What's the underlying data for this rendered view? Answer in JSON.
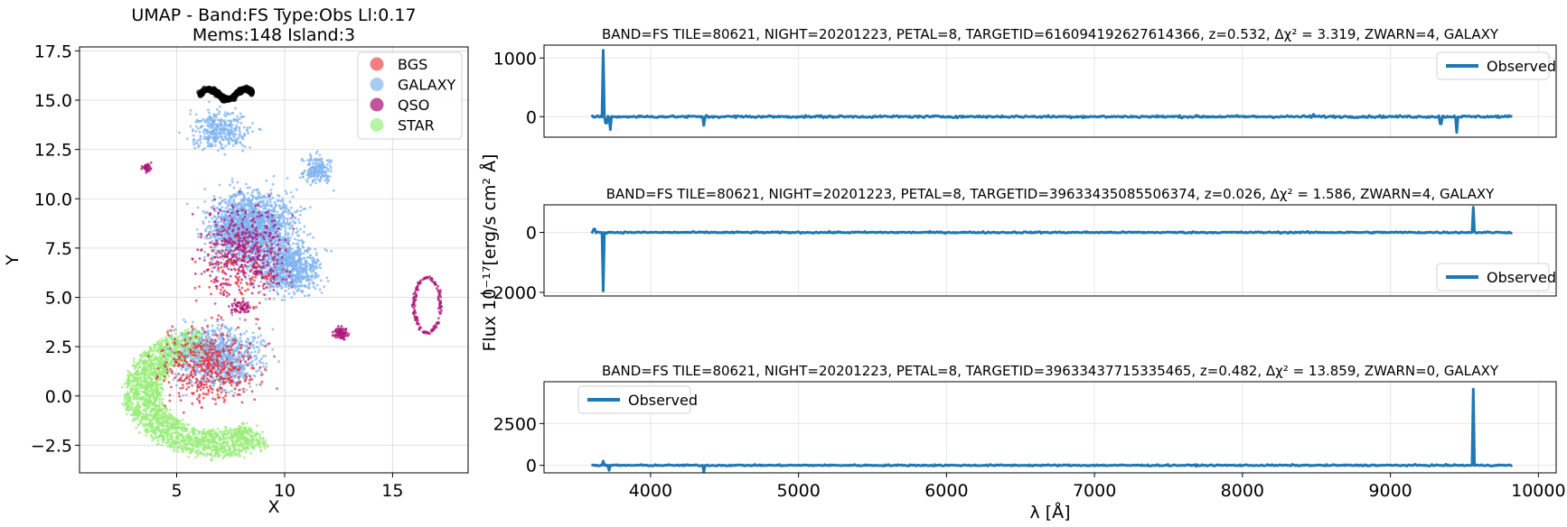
{
  "chart_data": [
    {
      "type": "scatter",
      "title": "UMAP  -  Band:FS Type:Obs Ll:0.17",
      "subtitle": "Mems:148 Island:3",
      "xlabel": "X",
      "ylabel": "Y",
      "xlim": [
        0.5,
        18.5
      ],
      "ylim": [
        -3.9,
        17.7
      ],
      "xticks": [
        5,
        10,
        15
      ],
      "yticks": [
        -2.5,
        0.0,
        2.5,
        5.0,
        7.5,
        10.0,
        12.5,
        15.0,
        17.5
      ],
      "ytick_labels": [
        "−2.5",
        "0.0",
        "2.5",
        "5.0",
        "7.5",
        "10.0",
        "12.5",
        "15.0",
        "17.5"
      ],
      "grid": true,
      "legend": {
        "placement": "top-right",
        "entries": [
          {
            "label": "BGS",
            "color": "#f08080"
          },
          {
            "label": "GALAXY",
            "color": "#a8cbf3"
          },
          {
            "label": "QSO",
            "color": "#c0569a"
          },
          {
            "label": "STAR",
            "color": "#b7f5a4"
          }
        ]
      },
      "series_colors": {
        "BGS": "#e8323c",
        "GALAXY": "#7fb3f0",
        "QSO": "#b0187a",
        "STAR": "#98ee78",
        "members": "#000000"
      },
      "regions": [
        {
          "series": "STAR",
          "shape": "crescent",
          "cx": 6.8,
          "cy": 1.0,
          "rx": 4.2,
          "ry": 3.6,
          "count": 2200
        },
        {
          "series": "GALAXY",
          "shape": "blob",
          "cx": 8.5,
          "cy": 8.5,
          "rx": 3.6,
          "ry": 3.2,
          "count": 1800
        },
        {
          "series": "GALAXY",
          "shape": "blob",
          "cx": 10.2,
          "cy": 6.5,
          "rx": 2.6,
          "ry": 2.2,
          "count": 800
        },
        {
          "series": "GALAXY",
          "shape": "blob",
          "cx": 7.0,
          "cy": 2.0,
          "rx": 3.5,
          "ry": 2.8,
          "count": 900
        },
        {
          "series": "GALAXY",
          "shape": "blob",
          "cx": 7.0,
          "cy": 13.5,
          "rx": 2.5,
          "ry": 1.8,
          "count": 350
        },
        {
          "series": "GALAXY",
          "shape": "blob",
          "cx": 11.5,
          "cy": 11.5,
          "rx": 1.2,
          "ry": 1.3,
          "count": 180
        },
        {
          "series": "BGS",
          "shape": "blob",
          "cx": 6.5,
          "cy": 1.5,
          "rx": 3.8,
          "ry": 3.3,
          "count": 450
        },
        {
          "series": "BGS",
          "shape": "blob",
          "cx": 8.0,
          "cy": 6.5,
          "rx": 3.5,
          "ry": 4.0,
          "count": 200
        },
        {
          "series": "QSO",
          "shape": "blob",
          "cx": 8.2,
          "cy": 7.5,
          "rx": 3.4,
          "ry": 3.8,
          "count": 380
        },
        {
          "series": "QSO",
          "shape": "blob",
          "cx": 12.6,
          "cy": 3.2,
          "rx": 0.5,
          "ry": 0.5,
          "count": 90
        },
        {
          "series": "QSO",
          "shape": "blob",
          "cx": 8.0,
          "cy": 4.5,
          "rx": 1.0,
          "ry": 0.6,
          "count": 60
        },
        {
          "series": "QSO",
          "shape": "blob",
          "cx": 3.6,
          "cy": 11.6,
          "rx": 0.5,
          "ry": 0.4,
          "count": 40
        },
        {
          "series": "QSO",
          "shape": "loop",
          "cx": 16.6,
          "cy": 4.6,
          "rx": 0.6,
          "ry": 1.4,
          "count": 160
        },
        {
          "series": "members",
          "shape": "arc",
          "cx": 7.3,
          "cy": 15.3,
          "rx": 1.2,
          "ry": 0.5,
          "count": 148
        }
      ]
    },
    {
      "type": "line",
      "title": "BAND=FS TILE=80621, NIGHT=20201223, PETAL=8, TARGETID=616094192627614366, z=0.532, Δχ² = 3.319, ZWARN=4, GALAXY",
      "xlim": [
        3280,
        10120
      ],
      "ylim": [
        -350,
        1220
      ],
      "yticks": [
        0,
        1000
      ],
      "ytick_labels": [
        "0",
        "1000"
      ],
      "grid": true,
      "legend": {
        "placement": "top-right",
        "entries": [
          {
            "label": "Observed",
            "color": "#1f77b4"
          }
        ]
      },
      "series": [
        {
          "name": "Observed",
          "color": "#1f77b4",
          "x_range": [
            3600,
            9824
          ],
          "baseline": 0,
          "noise": 18,
          "spikes": [
            [
              3680,
              1130
            ],
            [
              3700,
              -110
            ],
            [
              3725,
              -220
            ],
            [
              4360,
              -150
            ],
            [
              8480,
              40
            ],
            [
              9340,
              -120
            ],
            [
              9445,
              -270
            ]
          ]
        }
      ]
    },
    {
      "type": "line",
      "title": "BAND=FS TILE=80621, NIGHT=20201223, PETAL=8, TARGETID=39633435085506374, z=0.026, Δχ² = 1.586, ZWARN=4, GALAXY",
      "xlim": [
        3280,
        10120
      ],
      "ylim": [
        -2120,
        920
      ],
      "yticks": [
        -2000,
        0
      ],
      "ytick_labels": [
        "−2000",
        "0"
      ],
      "grid": true,
      "legend": {
        "placement": "bottom-right",
        "entries": [
          {
            "label": "Observed",
            "color": "#1f77b4"
          }
        ]
      },
      "series": [
        {
          "name": "Observed",
          "color": "#1f77b4",
          "x_range": [
            3600,
            9824
          ],
          "baseline": 0,
          "noise": 25,
          "spikes": [
            [
              3680,
              -1950
            ],
            [
              3620,
              110
            ],
            [
              9560,
              840
            ]
          ]
        }
      ]
    },
    {
      "type": "line",
      "title": "BAND=FS TILE=80621, NIGHT=20201223, PETAL=8, TARGETID=39633437715335465, z=0.482, Δχ² = 13.859, ZWARN=0, GALAXY",
      "xlabel": "λ [Å]",
      "xlim": [
        3280,
        10120
      ],
      "xticks": [
        4000,
        5000,
        6000,
        7000,
        8000,
        9000,
        10000
      ],
      "ylim": [
        -450,
        5000
      ],
      "yticks": [
        0,
        2500
      ],
      "ytick_labels": [
        "0",
        "2500"
      ],
      "grid": true,
      "legend": {
        "placement": "top-left",
        "entries": [
          {
            "label": "Observed",
            "color": "#1f77b4"
          }
        ]
      },
      "series": [
        {
          "name": "Observed",
          "color": "#1f77b4",
          "x_range": [
            3600,
            9824
          ],
          "baseline": 0,
          "noise": 40,
          "spikes": [
            [
              3680,
              250
            ],
            [
              3720,
              -300
            ],
            [
              4360,
              -380
            ],
            [
              9560,
              4550
            ]
          ]
        }
      ]
    }
  ],
  "shared_ylabel": "Flux 10⁻¹⁷[erg/s cm² Å]"
}
